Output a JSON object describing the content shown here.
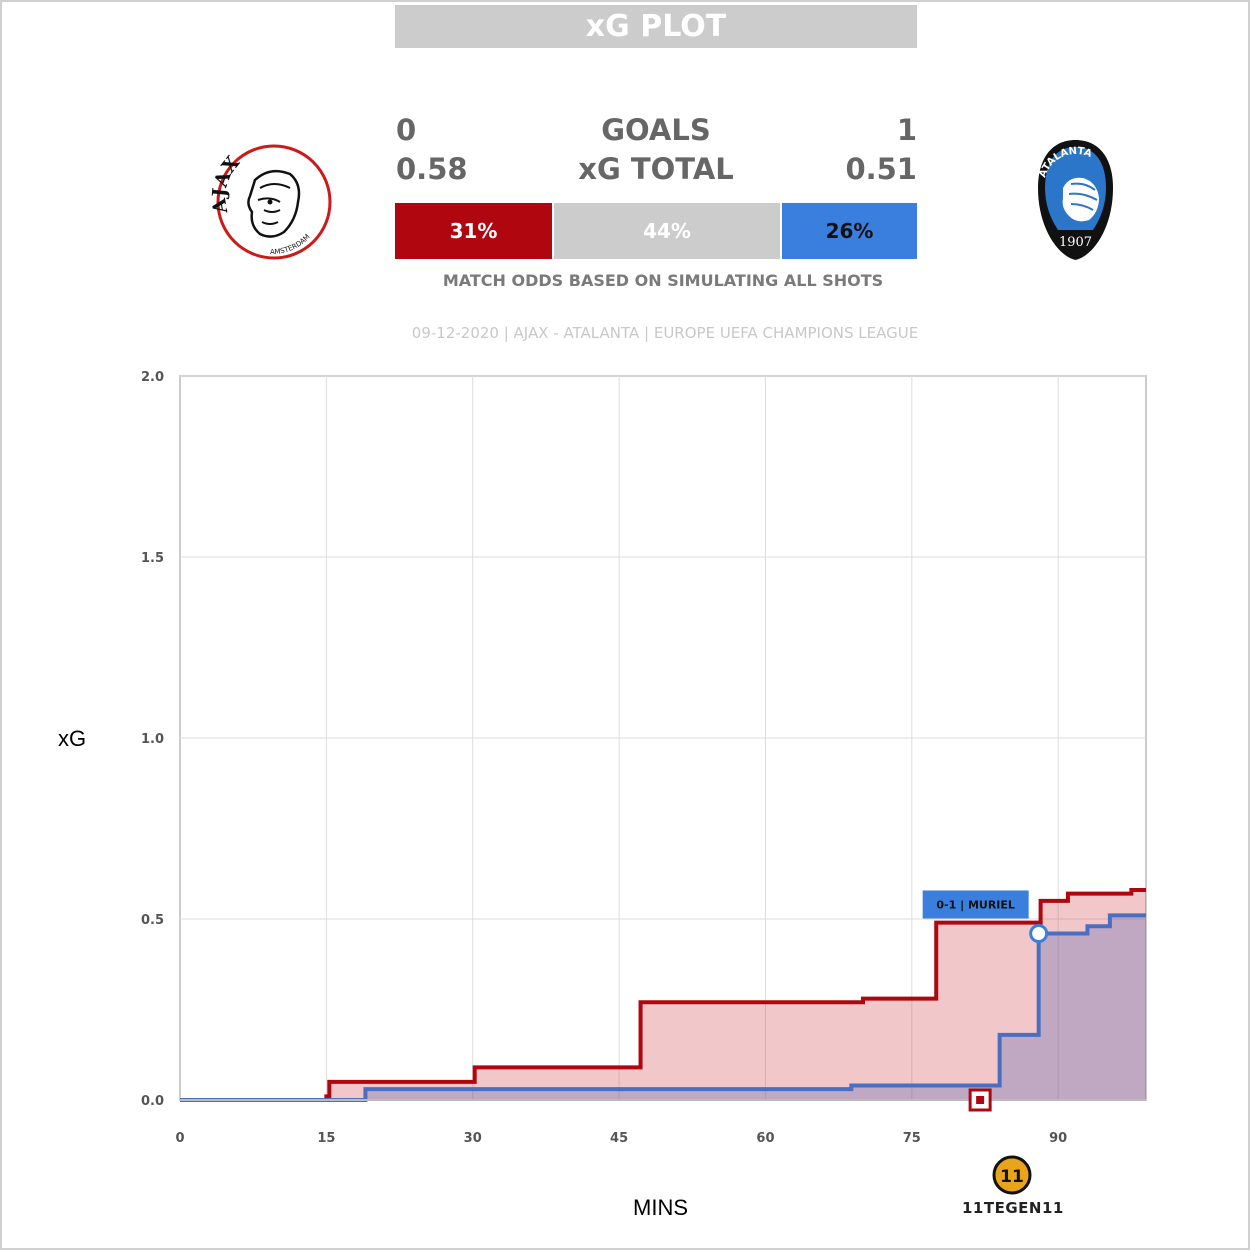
{
  "header": {
    "title": "xG PLOT"
  },
  "scoreboard": {
    "goals_label": "GOALS",
    "xg_label": "xG TOTAL",
    "home": {
      "name": "AJAX",
      "goals": "0",
      "xg": "0.58",
      "color": "#b0060f"
    },
    "away": {
      "name": "ATALANTA",
      "goals": "1",
      "xg": "0.51",
      "color": "#3a7fde"
    }
  },
  "odds": {
    "home": "31%",
    "draw": "44%",
    "away": "26%",
    "home_color": "#b0060f",
    "draw_color": "#cccccc",
    "away_color": "#3a7fde",
    "caption": "MATCH ODDS BASED ON SIMULATING ALL SHOTS"
  },
  "match_info": "09-12-2020 | AJAX - ATALANTA | EUROPE UEFA CHAMPIONS LEAGUE",
  "logos": {
    "home_logo_text": "AJAX",
    "home_logo_subtext": "AMSTERDAM",
    "away_logo_text": "ATALANTA",
    "away_logo_year": "1907"
  },
  "chart_data": {
    "type": "line",
    "xlabel": "MINS",
    "ylabel": "xG",
    "xlim": [
      0,
      99
    ],
    "ylim": [
      0,
      2.0
    ],
    "x_ticks": [
      0,
      15,
      30,
      45,
      60,
      75,
      90
    ],
    "x_tick_labels": [
      "0",
      "15",
      "30",
      "45",
      "60",
      "75",
      "90"
    ],
    "y_ticks": [
      0,
      0.5,
      1.0,
      1.5,
      2.0
    ],
    "y_tick_labels": [
      "0.0",
      "0.5",
      "1.0",
      "1.5",
      "2.0"
    ],
    "grid": true,
    "series": [
      {
        "name": "AJAX",
        "color": "#b0060f",
        "fill": "rgba(200,30,40,0.25)",
        "steps": [
          [
            0,
            0
          ],
          [
            15,
            0.01
          ],
          [
            15.3,
            0.05
          ],
          [
            30.2,
            0.09
          ],
          [
            47.2,
            0.27
          ],
          [
            70,
            0.28
          ],
          [
            77.5,
            0.49
          ],
          [
            88.2,
            0.55
          ],
          [
            91,
            0.57
          ],
          [
            97.5,
            0.58
          ],
          [
            99,
            0.58
          ]
        ]
      },
      {
        "name": "ATALANTA",
        "color": "#4a6fc0",
        "fill": "rgba(100,110,180,0.35)",
        "steps": [
          [
            0,
            0
          ],
          [
            19,
            0.03
          ],
          [
            68.8,
            0.04
          ],
          [
            84,
            0.18
          ],
          [
            88,
            0.46
          ],
          [
            93,
            0.48
          ],
          [
            95.3,
            0.51
          ],
          [
            99,
            0.51
          ]
        ]
      }
    ],
    "annotations": [
      {
        "type": "goal",
        "team": "ATALANTA",
        "minute": 88,
        "xg": 0.46,
        "label": "0-1 | MURIEL"
      },
      {
        "type": "event",
        "team": "AJAX",
        "minute": 82,
        "xg": 0
      }
    ]
  },
  "brand": {
    "text": "11TEGEN11",
    "mark": "11"
  }
}
